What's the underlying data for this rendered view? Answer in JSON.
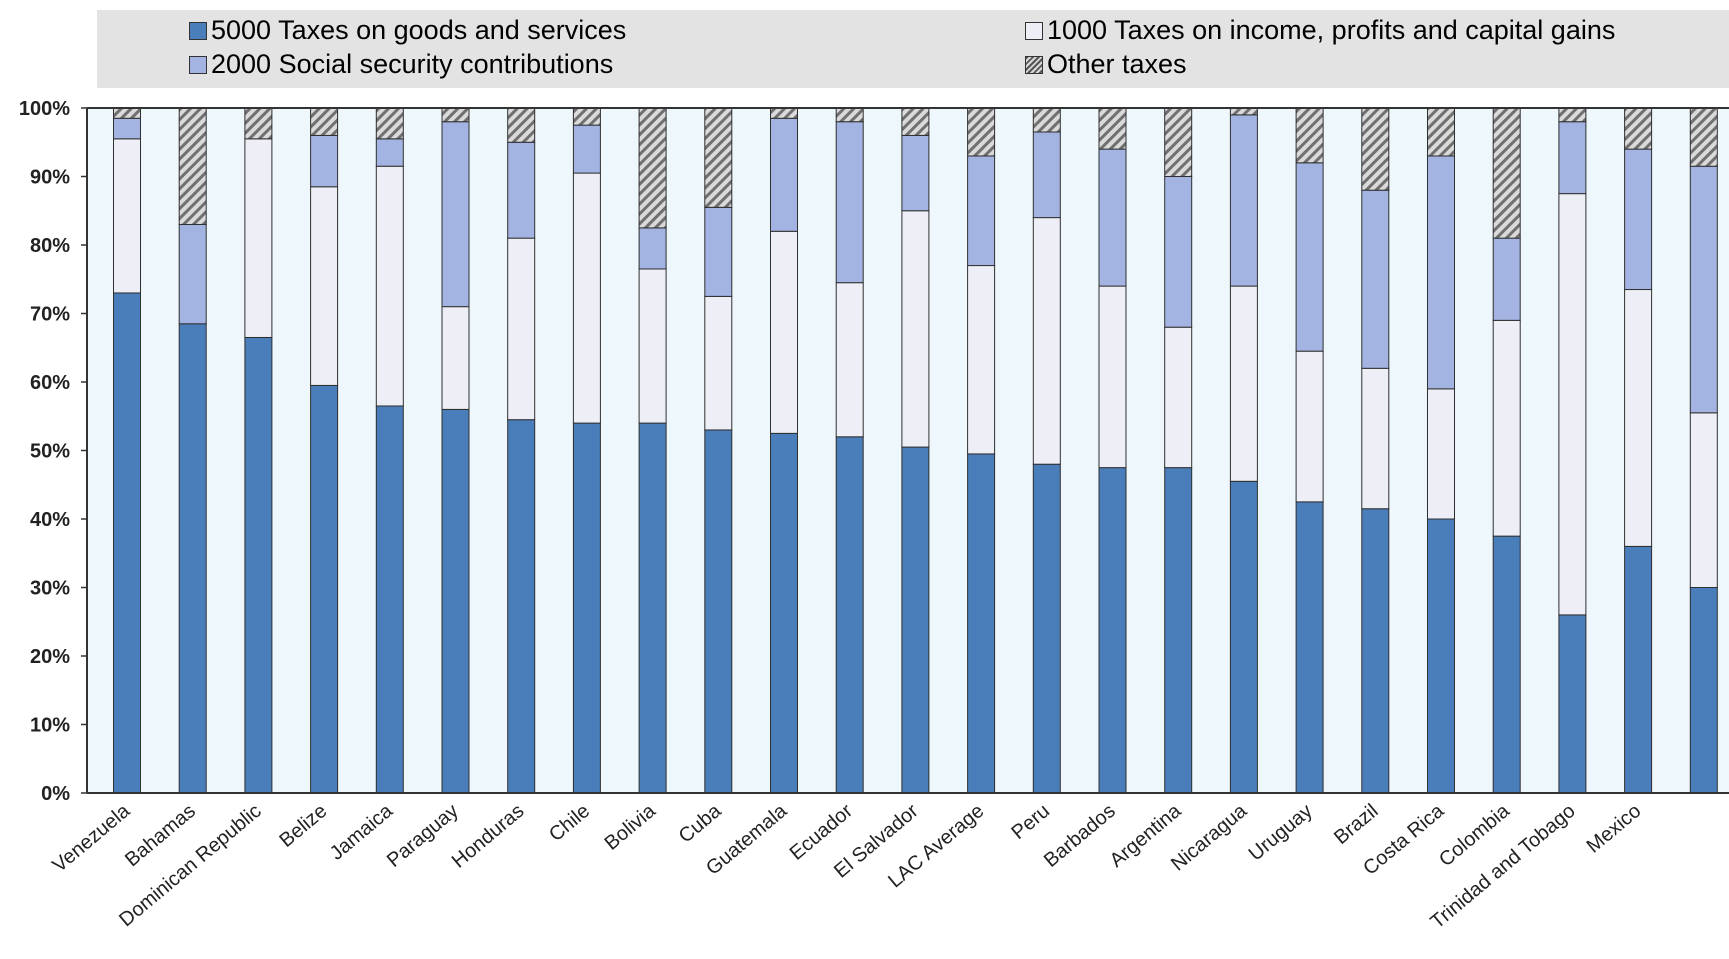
{
  "chart_data": {
    "type": "bar",
    "stacked": true,
    "categories": [
      "Venezuela",
      "Bahamas",
      "Dominican Republic",
      "Belize",
      "Jamaica",
      "Paraguay",
      "Honduras",
      "Chile",
      "Bolivia",
      "Cuba",
      "Guatemala",
      "Ecuador",
      "El Salvador",
      "LAC Average",
      "Peru",
      "Barbados",
      "Argentina",
      "Nicaragua",
      "Uruguay",
      "Brazil",
      "Costa Rica",
      "Colombia",
      "Trinidad and Tobago",
      "Mexico",
      ""
    ],
    "series": [
      {
        "name": "5000 Taxes on goods and services",
        "color": "#4a7ebb",
        "pattern": "solid",
        "values": [
          73,
          68.5,
          66.5,
          59.5,
          56.5,
          56,
          54.5,
          54,
          54,
          53,
          52.5,
          52,
          50.5,
          49.5,
          48,
          47.5,
          47.5,
          45.5,
          42.5,
          41.5,
          40,
          37.5,
          26,
          36,
          30
        ]
      },
      {
        "name": "1000 Taxes on income, profits and capital gains",
        "color": "#eeeff6",
        "pattern": "solid",
        "values": [
          22.5,
          0,
          29,
          29,
          35,
          15,
          26.5,
          36.5,
          22.5,
          19.5,
          29.5,
          22.5,
          34.5,
          27.5,
          36,
          26.5,
          20.5,
          28.5,
          22,
          20.5,
          19,
          31.5,
          61.5,
          37.5,
          25.5
        ]
      },
      {
        "name": "2000 Social security contributions",
        "color": "#a3b4e2",
        "pattern": "solid",
        "values": [
          3,
          14.5,
          0,
          7.5,
          4,
          27,
          14,
          7,
          6,
          13,
          16.5,
          23.5,
          11,
          16,
          12.5,
          20,
          22,
          25,
          27.5,
          26,
          34,
          12,
          10.5,
          20.5,
          36
        ]
      },
      {
        "name": "Other taxes",
        "color": "#999999",
        "pattern": "hatch",
        "values": [
          1.5,
          17,
          4.5,
          4,
          4.5,
          2,
          5,
          2.5,
          17.5,
          14.5,
          1.5,
          2,
          4,
          7,
          3.5,
          6,
          10,
          1,
          8,
          12,
          7,
          19,
          2,
          6,
          8.5
        ]
      }
    ],
    "y_ticks": [
      "0%",
      "10%",
      "20%",
      "30%",
      "40%",
      "50%",
      "60%",
      "70%",
      "80%",
      "90%",
      "100%"
    ],
    "ylim": [
      0,
      100
    ],
    "xlabel": "",
    "ylabel": "",
    "title": "",
    "legend_placement": "top"
  },
  "legend": {
    "items": [
      {
        "label": "5000 Taxes on goods and services",
        "color": "#4a7ebb",
        "pattern": "solid"
      },
      {
        "label": "1000 Taxes on income, profits and capital gains",
        "color": "#eeeff6",
        "pattern": "solid"
      },
      {
        "label": "2000 Social security contributions",
        "color": "#a3b4e2",
        "pattern": "solid"
      },
      {
        "label": "Other taxes",
        "color": "#999999",
        "pattern": "hatch"
      }
    ]
  },
  "colors": {
    "plot_background": "#eef7fb",
    "legend_background": "#e3e3e3"
  }
}
